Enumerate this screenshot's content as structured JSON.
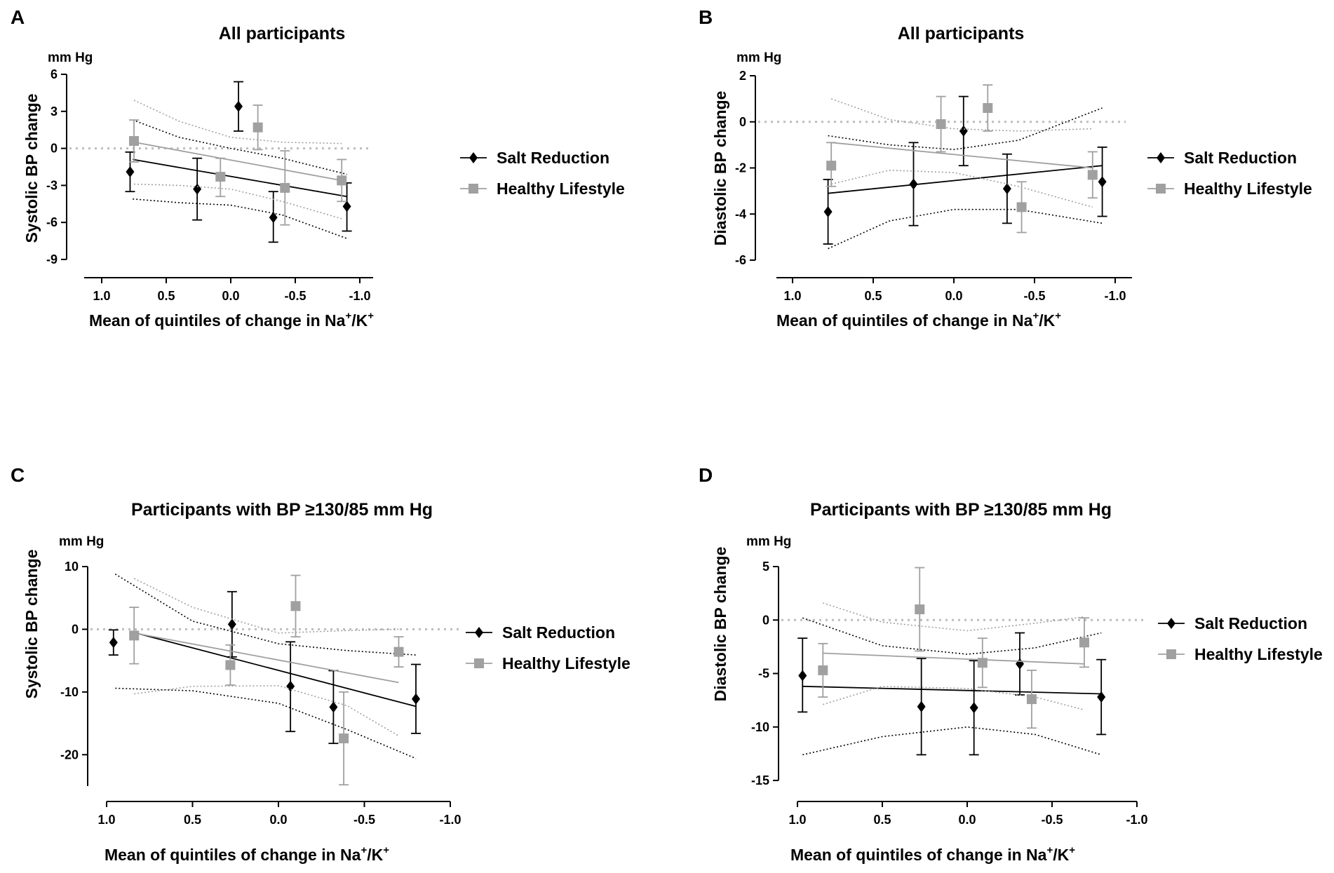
{
  "figure": {
    "background": "#ffffff"
  },
  "colors": {
    "salt": "#000000",
    "healthy": "#a0a0a0",
    "zero_line": "#bdbdbd"
  },
  "chart_data": [
    {
      "panel": "A",
      "type": "scatter",
      "title": "All participants",
      "unit_label": "mm Hg",
      "ylabel": "Systolic BP change",
      "xlabel_text": "Mean of quintiles of change in Na",
      "xlabel_sup1": "+",
      "xlabel_mid": "/K",
      "xlabel_sup2": "+",
      "xlim": [
        1.0,
        -1.0
      ],
      "ylim": [
        -9,
        6
      ],
      "xticks": [
        1.0,
        0.5,
        0.0,
        -0.5,
        -1.0
      ],
      "xtick_labels": [
        "1.0",
        "0.5",
        "0.0",
        "-0.5",
        "-1.0"
      ],
      "yticks": [
        6,
        3,
        0,
        -3,
        -6,
        -9
      ],
      "ytick_labels": [
        "6",
        "3",
        "0",
        "-3",
        "-6",
        "-9"
      ],
      "zero_line": 0,
      "legend": [
        "Salt Reduction",
        "Healthy Lifestyle"
      ],
      "series": [
        {
          "name": "Salt Reduction",
          "marker": "diamond",
          "points": [
            {
              "x": 0.78,
              "y": -1.9,
              "lo": -3.5,
              "hi": -0.3
            },
            {
              "x": 0.26,
              "y": -3.3,
              "lo": -5.8,
              "hi": -0.8
            },
            {
              "x": -0.06,
              "y": 3.4,
              "lo": 1.4,
              "hi": 5.4
            },
            {
              "x": -0.33,
              "y": -5.6,
              "lo": -7.6,
              "hi": -3.5
            },
            {
              "x": -0.9,
              "y": -4.7,
              "lo": -6.7,
              "hi": -2.8
            }
          ],
          "fit": {
            "x": [
              0.76,
              -0.9
            ],
            "y": [
              -0.9,
              -3.9
            ]
          },
          "ci_upper": {
            "x": [
              0.76,
              0.4,
              0.0,
              -0.4,
              -0.9
            ],
            "y": [
              2.3,
              0.9,
              0.0,
              -0.8,
              -2.1
            ]
          },
          "ci_lower": {
            "x": [
              0.76,
              0.4,
              0.0,
              -0.4,
              -0.9
            ],
            "y": [
              -4.1,
              -4.4,
              -4.6,
              -5.4,
              -7.3
            ]
          }
        },
        {
          "name": "Healthy Lifestyle",
          "marker": "square",
          "points": [
            {
              "x": 0.75,
              "y": 0.6,
              "lo": -1.1,
              "hi": 2.3
            },
            {
              "x": 0.08,
              "y": -2.3,
              "lo": -3.9,
              "hi": -0.8
            },
            {
              "x": -0.21,
              "y": 1.7,
              "lo": -0.1,
              "hi": 3.5
            },
            {
              "x": -0.42,
              "y": -3.2,
              "lo": -6.2,
              "hi": -0.2
            },
            {
              "x": -0.86,
              "y": -2.6,
              "lo": -4.3,
              "hi": -0.9
            }
          ],
          "fit": {
            "x": [
              0.75,
              -0.86
            ],
            "y": [
              0.5,
              -2.6
            ]
          },
          "ci_upper": {
            "x": [
              0.75,
              0.4,
              0.0,
              -0.4,
              -0.86
            ],
            "y": [
              3.9,
              2.2,
              0.9,
              0.5,
              0.4
            ]
          },
          "ci_lower": {
            "x": [
              0.75,
              0.4,
              0.0,
              -0.4,
              -0.86
            ],
            "y": [
              -2.9,
              -3.0,
              -3.3,
              -4.3,
              -5.7
            ]
          }
        }
      ]
    },
    {
      "panel": "B",
      "type": "scatter",
      "title": "All participants",
      "unit_label": "mm Hg",
      "ylabel": "Diastolic BP change",
      "xlabel_text": "Mean of quintiles of change in Na",
      "xlabel_sup1": "+",
      "xlabel_mid": "/K",
      "xlabel_sup2": "+",
      "xlim": [
        1.0,
        -1.0
      ],
      "ylim": [
        -6,
        2
      ],
      "xticks": [
        1.0,
        0.5,
        0.0,
        -0.5,
        -1.0
      ],
      "xtick_labels": [
        "1.0",
        "0.5",
        "0.0",
        "-0.5",
        "-1.0"
      ],
      "yticks": [
        2,
        0,
        -2,
        -4,
        -6
      ],
      "ytick_labels": [
        "2",
        "0",
        "-2",
        "-4",
        "-6"
      ],
      "zero_line": 0,
      "legend": [
        "Salt Reduction",
        "Healthy Lifestyle"
      ],
      "series": [
        {
          "name": "Salt Reduction",
          "marker": "diamond",
          "points": [
            {
              "x": 0.78,
              "y": -3.9,
              "lo": -5.3,
              "hi": -2.5
            },
            {
              "x": 0.25,
              "y": -2.7,
              "lo": -4.5,
              "hi": -0.9
            },
            {
              "x": -0.06,
              "y": -0.4,
              "lo": -1.9,
              "hi": 1.1
            },
            {
              "x": -0.33,
              "y": -2.9,
              "lo": -4.4,
              "hi": -1.4
            },
            {
              "x": -0.92,
              "y": -2.6,
              "lo": -4.1,
              "hi": -1.1
            }
          ],
          "fit": {
            "x": [
              0.78,
              -0.92
            ],
            "y": [
              -3.1,
              -1.9
            ]
          },
          "ci_upper": {
            "x": [
              0.78,
              0.4,
              0.0,
              -0.4,
              -0.92
            ],
            "y": [
              -0.6,
              -1.0,
              -1.2,
              -0.8,
              0.6
            ]
          },
          "ci_lower": {
            "x": [
              0.78,
              0.4,
              0.0,
              -0.4,
              -0.92
            ],
            "y": [
              -5.5,
              -4.3,
              -3.8,
              -3.8,
              -4.4
            ]
          }
        },
        {
          "name": "Healthy Lifestyle",
          "marker": "square",
          "points": [
            {
              "x": 0.76,
              "y": -1.9,
              "lo": -2.8,
              "hi": -0.9
            },
            {
              "x": 0.08,
              "y": -0.1,
              "lo": -1.3,
              "hi": 1.1
            },
            {
              "x": -0.21,
              "y": 0.6,
              "lo": -0.4,
              "hi": 1.6
            },
            {
              "x": -0.42,
              "y": -3.7,
              "lo": -4.8,
              "hi": -2.6
            },
            {
              "x": -0.86,
              "y": -2.3,
              "lo": -3.3,
              "hi": -1.3
            }
          ],
          "fit": {
            "x": [
              0.76,
              -0.86
            ],
            "y": [
              -0.9,
              -2.0
            ]
          },
          "ci_upper": {
            "x": [
              0.76,
              0.4,
              0.0,
              -0.4,
              -0.86
            ],
            "y": [
              1.0,
              0.1,
              -0.3,
              -0.4,
              -0.3
            ]
          },
          "ci_lower": {
            "x": [
              0.76,
              0.4,
              0.0,
              -0.4,
              -0.86
            ],
            "y": [
              -2.7,
              -2.1,
              -2.2,
              -2.8,
              -3.7
            ]
          }
        }
      ]
    },
    {
      "panel": "C",
      "type": "scatter",
      "title": "Participants with BP ≥130/85 mm Hg",
      "unit_label": "mm Hg",
      "ylabel": "Systolic BP change",
      "xlabel_text": "Mean of quintiles of change in Na",
      "xlabel_sup1": "+",
      "xlabel_mid": "/K",
      "xlabel_sup2": "+",
      "xlim": [
        1.0,
        -1.0
      ],
      "ylim": [
        -25,
        10
      ],
      "xticks": [
        1.0,
        0.5,
        0.0,
        -0.5,
        -1.0
      ],
      "xtick_labels": [
        "1.0",
        "0.5",
        "0.0",
        "-0.5",
        "-1.0"
      ],
      "yticks": [
        10,
        0,
        -10,
        -20
      ],
      "ytick_labels": [
        "10",
        "0",
        "-10",
        "-20"
      ],
      "zero_line": 0,
      "legend": [
        "Salt Reduction",
        "Healthy Lifestyle"
      ],
      "series": [
        {
          "name": "Salt Reduction",
          "marker": "diamond",
          "points": [
            {
              "x": 0.96,
              "y": -2.1,
              "lo": -4.1,
              "hi": -0.1
            },
            {
              "x": 0.27,
              "y": 0.8,
              "lo": -4.4,
              "hi": 6.0
            },
            {
              "x": -0.07,
              "y": -9.1,
              "lo": -16.3,
              "hi": -2.0
            },
            {
              "x": -0.32,
              "y": -12.4,
              "lo": -18.2,
              "hi": -6.6
            },
            {
              "x": -0.8,
              "y": -11.1,
              "lo": -16.6,
              "hi": -5.6
            }
          ],
          "fit": {
            "x": [
              0.83,
              -0.8
            ],
            "y": [
              -0.6,
              -12.3
            ]
          },
          "ci_upper": {
            "x": [
              0.95,
              0.5,
              0.0,
              -0.4,
              -0.8
            ],
            "y": [
              8.8,
              1.3,
              -2.3,
              -3.4,
              -4.1
            ]
          },
          "ci_lower": {
            "x": [
              0.95,
              0.5,
              0.0,
              -0.4,
              -0.8
            ],
            "y": [
              -9.4,
              -9.8,
              -11.8,
              -16.0,
              -20.6
            ]
          }
        },
        {
          "name": "Healthy Lifestyle",
          "marker": "square",
          "points": [
            {
              "x": 0.84,
              "y": -1.0,
              "lo": -5.5,
              "hi": 3.5
            },
            {
              "x": 0.28,
              "y": -5.7,
              "lo": -8.9,
              "hi": -2.5
            },
            {
              "x": -0.1,
              "y": 3.7,
              "lo": -1.2,
              "hi": 8.6
            },
            {
              "x": -0.38,
              "y": -17.4,
              "lo": -24.8,
              "hi": -10.0
            },
            {
              "x": -0.7,
              "y": -3.6,
              "lo": -6.0,
              "hi": -1.2
            }
          ],
          "fit": {
            "x": [
              0.84,
              -0.7
            ],
            "y": [
              -0.6,
              -8.5
            ]
          },
          "ci_upper": {
            "x": [
              0.84,
              0.5,
              0.0,
              -0.4,
              -0.7
            ],
            "y": [
              8.1,
              3.5,
              -0.6,
              -0.2,
              0.0
            ]
          },
          "ci_lower": {
            "x": [
              0.84,
              0.5,
              0.0,
              -0.4,
              -0.7
            ],
            "y": [
              -10.3,
              -9.1,
              -9.0,
              -12.2,
              -17.0
            ]
          }
        }
      ]
    },
    {
      "panel": "D",
      "type": "scatter",
      "title": "Participants with BP ≥130/85 mm Hg",
      "unit_label": "mm Hg",
      "ylabel": "Diastolic BP change",
      "xlabel_text": "Mean of quintiles of change in Na",
      "xlabel_sup1": "+",
      "xlabel_mid": "/K",
      "xlabel_sup2": "+",
      "xlim": [
        1.0,
        -1.0
      ],
      "ylim": [
        -15,
        5
      ],
      "xticks": [
        1.0,
        0.5,
        0.0,
        -0.5,
        -1.0
      ],
      "xtick_labels": [
        "1.0",
        "0.5",
        "0.0",
        "-0.5",
        "-1.0"
      ],
      "yticks": [
        5,
        0,
        -5,
        -10,
        -15
      ],
      "ytick_labels": [
        "5",
        "0",
        "-5",
        "-10",
        "-15"
      ],
      "zero_line": 0,
      "legend": [
        "Salt Reduction",
        "Healthy Lifestyle"
      ],
      "series": [
        {
          "name": "Salt Reduction",
          "marker": "diamond",
          "points": [
            {
              "x": 0.97,
              "y": -5.2,
              "lo": -8.6,
              "hi": -1.7
            },
            {
              "x": 0.27,
              "y": -8.1,
              "lo": -12.6,
              "hi": -3.6
            },
            {
              "x": -0.04,
              "y": -8.2,
              "lo": -12.6,
              "hi": -3.8
            },
            {
              "x": -0.31,
              "y": -4.1,
              "lo": -7.0,
              "hi": -1.2
            },
            {
              "x": -0.79,
              "y": -7.2,
              "lo": -10.7,
              "hi": -3.7
            }
          ],
          "fit": {
            "x": [
              0.97,
              -0.79
            ],
            "y": [
              -6.2,
              -6.9
            ]
          },
          "ci_upper": {
            "x": [
              0.97,
              0.5,
              0.0,
              -0.4,
              -0.79
            ],
            "y": [
              0.2,
              -2.4,
              -3.2,
              -2.6,
              -1.2
            ]
          },
          "ci_lower": {
            "x": [
              0.97,
              0.5,
              0.0,
              -0.4,
              -0.79
            ],
            "y": [
              -12.6,
              -10.9,
              -10.0,
              -10.7,
              -12.6
            ]
          }
        },
        {
          "name": "Healthy Lifestyle",
          "marker": "square",
          "points": [
            {
              "x": 0.85,
              "y": -4.7,
              "lo": -7.2,
              "hi": -2.2
            },
            {
              "x": 0.28,
              "y": 1.0,
              "lo": -2.9,
              "hi": 4.9
            },
            {
              "x": -0.09,
              "y": -4.0,
              "lo": -6.3,
              "hi": -1.7
            },
            {
              "x": -0.38,
              "y": -7.4,
              "lo": -10.1,
              "hi": -4.7
            },
            {
              "x": -0.69,
              "y": -2.1,
              "lo": -4.4,
              "hi": 0.2
            }
          ],
          "fit": {
            "x": [
              0.85,
              -0.69
            ],
            "y": [
              -3.1,
              -4.1
            ]
          },
          "ci_upper": {
            "x": [
              0.85,
              0.5,
              0.0,
              -0.4,
              -0.69
            ],
            "y": [
              1.6,
              -0.2,
              -1.0,
              -0.3,
              0.3
            ]
          },
          "ci_lower": {
            "x": [
              0.85,
              0.5,
              0.0,
              -0.4,
              -0.69
            ],
            "y": [
              -7.9,
              -6.2,
              -6.4,
              -7.2,
              -8.4
            ]
          }
        }
      ]
    }
  ]
}
